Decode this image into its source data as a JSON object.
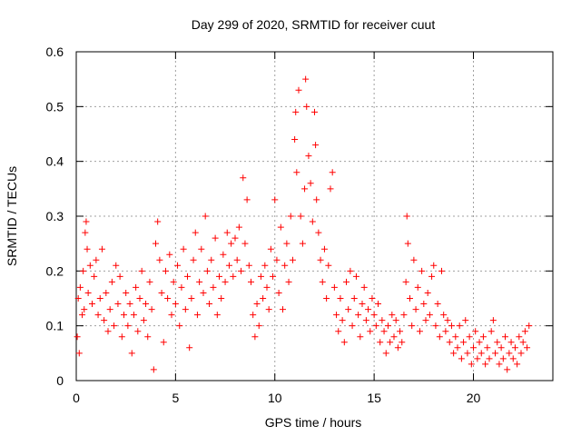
{
  "chart_data": {
    "type": "scatter",
    "title": "Day 299 of 2020, SRMTID for receiver cuut",
    "xlabel": "GPS time / hours",
    "ylabel": "SRMTID / TECUs",
    "xlim": [
      0,
      24
    ],
    "ylim": [
      0,
      0.6
    ],
    "xticks": [
      0,
      5,
      10,
      15,
      20
    ],
    "yticks": [
      0,
      0.1,
      0.2,
      0.3,
      0.4,
      0.5,
      0.6
    ],
    "xtick_labels": [
      "0",
      "5",
      "10",
      "15",
      "20"
    ],
    "ytick_labels": [
      "0",
      "0.1",
      "0.2",
      "0.3",
      "0.4",
      "0.5",
      "0.6"
    ],
    "grid": true,
    "marker": "+",
    "color": "#ff0000",
    "series": [
      {
        "name": "SRMTID",
        "points": [
          [
            0.05,
            0.08
          ],
          [
            0.1,
            0.15
          ],
          [
            0.15,
            0.05
          ],
          [
            0.2,
            0.17
          ],
          [
            0.3,
            0.12
          ],
          [
            0.35,
            0.2
          ],
          [
            0.4,
            0.13
          ],
          [
            0.45,
            0.27
          ],
          [
            0.5,
            0.29
          ],
          [
            0.55,
            0.24
          ],
          [
            0.6,
            0.16
          ],
          [
            0.7,
            0.21
          ],
          [
            0.8,
            0.14
          ],
          [
            0.9,
            0.19
          ],
          [
            1.0,
            0.22
          ],
          [
            1.1,
            0.12
          ],
          [
            1.2,
            0.15
          ],
          [
            1.3,
            0.24
          ],
          [
            1.4,
            0.11
          ],
          [
            1.5,
            0.16
          ],
          [
            1.6,
            0.09
          ],
          [
            1.7,
            0.13
          ],
          [
            1.8,
            0.18
          ],
          [
            1.9,
            0.1
          ],
          [
            2.0,
            0.21
          ],
          [
            2.1,
            0.14
          ],
          [
            2.2,
            0.19
          ],
          [
            2.3,
            0.08
          ],
          [
            2.4,
            0.12
          ],
          [
            2.5,
            0.16
          ],
          [
            2.6,
            0.1
          ],
          [
            2.7,
            0.14
          ],
          [
            2.8,
            0.05
          ],
          [
            2.9,
            0.12
          ],
          [
            3.0,
            0.17
          ],
          [
            3.1,
            0.09
          ],
          [
            3.2,
            0.15
          ],
          [
            3.3,
            0.2
          ],
          [
            3.4,
            0.11
          ],
          [
            3.5,
            0.14
          ],
          [
            3.6,
            0.08
          ],
          [
            3.7,
            0.18
          ],
          [
            3.8,
            0.13
          ],
          [
            3.9,
            0.02
          ],
          [
            4.0,
            0.25
          ],
          [
            4.1,
            0.29
          ],
          [
            4.2,
            0.22
          ],
          [
            4.3,
            0.16
          ],
          [
            4.4,
            0.07
          ],
          [
            4.5,
            0.2
          ],
          [
            4.6,
            0.15
          ],
          [
            4.7,
            0.23
          ],
          [
            4.8,
            0.12
          ],
          [
            4.9,
            0.18
          ],
          [
            5.0,
            0.14
          ],
          [
            5.1,
            0.21
          ],
          [
            5.2,
            0.1
          ],
          [
            5.3,
            0.17
          ],
          [
            5.4,
            0.24
          ],
          [
            5.5,
            0.13
          ],
          [
            5.6,
            0.19
          ],
          [
            5.7,
            0.06
          ],
          [
            5.8,
            0.15
          ],
          [
            5.9,
            0.22
          ],
          [
            6.0,
            0.27
          ],
          [
            6.1,
            0.12
          ],
          [
            6.2,
            0.18
          ],
          [
            6.3,
            0.24
          ],
          [
            6.4,
            0.16
          ],
          [
            6.5,
            0.3
          ],
          [
            6.6,
            0.2
          ],
          [
            6.7,
            0.14
          ],
          [
            6.8,
            0.22
          ],
          [
            6.9,
            0.17
          ],
          [
            7.0,
            0.26
          ],
          [
            7.1,
            0.12
          ],
          [
            7.2,
            0.19
          ],
          [
            7.3,
            0.15
          ],
          [
            7.4,
            0.23
          ],
          [
            7.5,
            0.18
          ],
          [
            7.6,
            0.27
          ],
          [
            7.7,
            0.21
          ],
          [
            7.8,
            0.25
          ],
          [
            7.9,
            0.19
          ],
          [
            8.0,
            0.26
          ],
          [
            8.1,
            0.22
          ],
          [
            8.2,
            0.28
          ],
          [
            8.3,
            0.2
          ],
          [
            8.4,
            0.37
          ],
          [
            8.5,
            0.25
          ],
          [
            8.6,
            0.33
          ],
          [
            8.7,
            0.21
          ],
          [
            8.8,
            0.18
          ],
          [
            8.9,
            0.12
          ],
          [
            9.0,
            0.08
          ],
          [
            9.1,
            0.14
          ],
          [
            9.2,
            0.1
          ],
          [
            9.3,
            0.19
          ],
          [
            9.4,
            0.15
          ],
          [
            9.5,
            0.21
          ],
          [
            9.6,
            0.17
          ],
          [
            9.7,
            0.13
          ],
          [
            9.8,
            0.24
          ],
          [
            9.9,
            0.19
          ],
          [
            10.0,
            0.33
          ],
          [
            10.1,
            0.22
          ],
          [
            10.2,
            0.16
          ],
          [
            10.3,
            0.28
          ],
          [
            10.4,
            0.13
          ],
          [
            10.5,
            0.21
          ],
          [
            10.6,
            0.25
          ],
          [
            10.7,
            0.18
          ],
          [
            10.8,
            0.3
          ],
          [
            10.9,
            0.22
          ],
          [
            11.0,
            0.44
          ],
          [
            11.05,
            0.49
          ],
          [
            11.1,
            0.38
          ],
          [
            11.2,
            0.53
          ],
          [
            11.3,
            0.3
          ],
          [
            11.4,
            0.25
          ],
          [
            11.5,
            0.35
          ],
          [
            11.55,
            0.55
          ],
          [
            11.6,
            0.5
          ],
          [
            11.7,
            0.41
          ],
          [
            11.8,
            0.36
          ],
          [
            11.9,
            0.29
          ],
          [
            12.0,
            0.49
          ],
          [
            12.05,
            0.43
          ],
          [
            12.1,
            0.33
          ],
          [
            12.2,
            0.27
          ],
          [
            12.3,
            0.22
          ],
          [
            12.4,
            0.18
          ],
          [
            12.5,
            0.24
          ],
          [
            12.6,
            0.15
          ],
          [
            12.7,
            0.21
          ],
          [
            12.8,
            0.35
          ],
          [
            12.9,
            0.38
          ],
          [
            13.0,
            0.17
          ],
          [
            13.1,
            0.12
          ],
          [
            13.2,
            0.09
          ],
          [
            13.3,
            0.15
          ],
          [
            13.4,
            0.11
          ],
          [
            13.5,
            0.07
          ],
          [
            13.6,
            0.18
          ],
          [
            13.7,
            0.13
          ],
          [
            13.8,
            0.2
          ],
          [
            13.9,
            0.1
          ],
          [
            14.0,
            0.15
          ],
          [
            14.1,
            0.19
          ],
          [
            14.2,
            0.12
          ],
          [
            14.3,
            0.08
          ],
          [
            14.4,
            0.14
          ],
          [
            14.5,
            0.17
          ],
          [
            14.6,
            0.11
          ],
          [
            14.7,
            0.13
          ],
          [
            14.8,
            0.09
          ],
          [
            14.9,
            0.15
          ],
          [
            15.0,
            0.12
          ],
          [
            15.1,
            0.1
          ],
          [
            15.2,
            0.14
          ],
          [
            15.3,
            0.07
          ],
          [
            15.4,
            0.11
          ],
          [
            15.5,
            0.09
          ],
          [
            15.6,
            0.05
          ],
          [
            15.7,
            0.1
          ],
          [
            15.8,
            0.07
          ],
          [
            15.9,
            0.12
          ],
          [
            16.0,
            0.08
          ],
          [
            16.1,
            0.11
          ],
          [
            16.2,
            0.06
          ],
          [
            16.3,
            0.09
          ],
          [
            16.4,
            0.07
          ],
          [
            16.5,
            0.12
          ],
          [
            16.6,
            0.18
          ],
          [
            16.65,
            0.3
          ],
          [
            16.7,
            0.25
          ],
          [
            16.8,
            0.15
          ],
          [
            16.9,
            0.1
          ],
          [
            17.0,
            0.22
          ],
          [
            17.1,
            0.13
          ],
          [
            17.2,
            0.17
          ],
          [
            17.3,
            0.09
          ],
          [
            17.4,
            0.2
          ],
          [
            17.5,
            0.14
          ],
          [
            17.6,
            0.11
          ],
          [
            17.7,
            0.16
          ],
          [
            17.8,
            0.12
          ],
          [
            17.9,
            0.19
          ],
          [
            18.0,
            0.21
          ],
          [
            18.1,
            0.1
          ],
          [
            18.2,
            0.14
          ],
          [
            18.3,
            0.08
          ],
          [
            18.4,
            0.2
          ],
          [
            18.5,
            0.12
          ],
          [
            18.6,
            0.09
          ],
          [
            18.7,
            0.11
          ],
          [
            18.8,
            0.07
          ],
          [
            18.9,
            0.1
          ],
          [
            19.0,
            0.05
          ],
          [
            19.1,
            0.08
          ],
          [
            19.2,
            0.06
          ],
          [
            19.3,
            0.1
          ],
          [
            19.4,
            0.04
          ],
          [
            19.5,
            0.07
          ],
          [
            19.6,
            0.11
          ],
          [
            19.7,
            0.05
          ],
          [
            19.8,
            0.08
          ],
          [
            19.9,
            0.03
          ],
          [
            20.0,
            0.06
          ],
          [
            20.1,
            0.09
          ],
          [
            20.2,
            0.04
          ],
          [
            20.3,
            0.07
          ],
          [
            20.4,
            0.05
          ],
          [
            20.5,
            0.08
          ],
          [
            20.6,
            0.03
          ],
          [
            20.7,
            0.06
          ],
          [
            20.8,
            0.04
          ],
          [
            20.9,
            0.09
          ],
          [
            21.0,
            0.11
          ],
          [
            21.1,
            0.05
          ],
          [
            21.2,
            0.07
          ],
          [
            21.3,
            0.03
          ],
          [
            21.4,
            0.06
          ],
          [
            21.5,
            0.04
          ],
          [
            21.6,
            0.08
          ],
          [
            21.7,
            0.02
          ],
          [
            21.8,
            0.05
          ],
          [
            21.9,
            0.07
          ],
          [
            22.0,
            0.04
          ],
          [
            22.1,
            0.06
          ],
          [
            22.2,
            0.03
          ],
          [
            22.3,
            0.08
          ],
          [
            22.4,
            0.05
          ],
          [
            22.5,
            0.07
          ],
          [
            22.6,
            0.09
          ],
          [
            22.7,
            0.06
          ],
          [
            22.8,
            0.1
          ]
        ]
      }
    ]
  }
}
